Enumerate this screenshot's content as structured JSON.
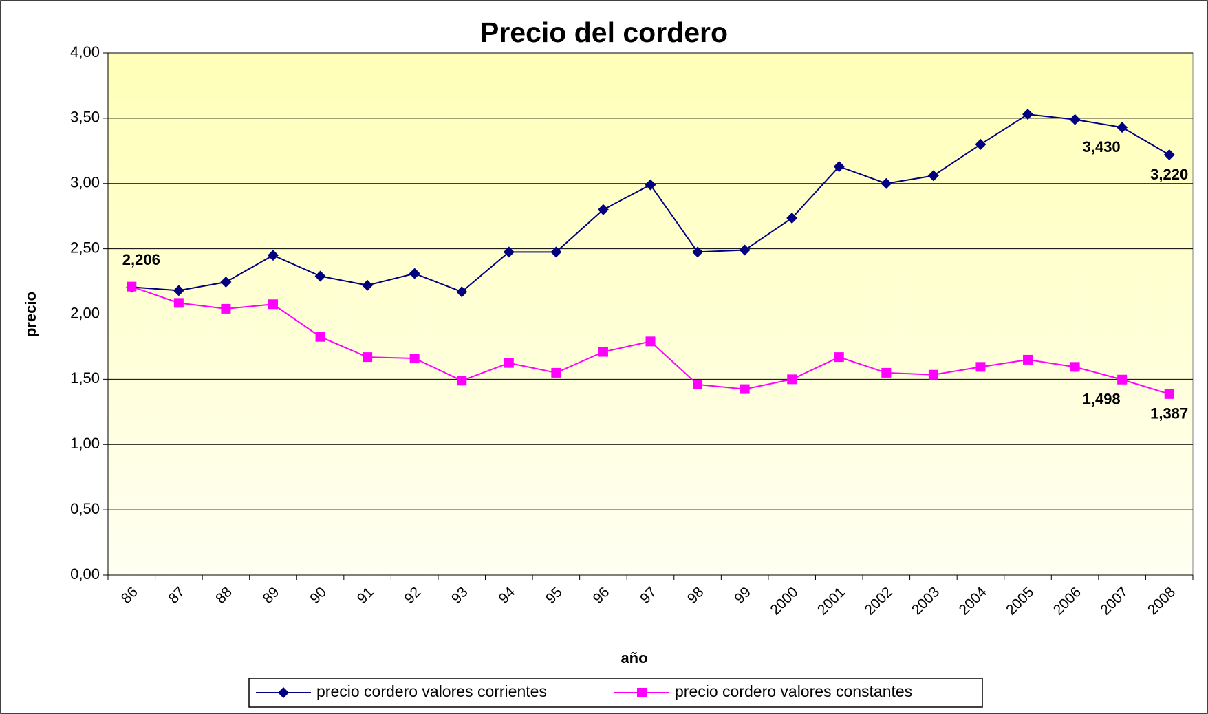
{
  "chart_data": {
    "type": "line",
    "title": "Precio del cordero",
    "x_label": "año",
    "y_label": "precio",
    "categories": [
      "86",
      "87",
      "88",
      "89",
      "90",
      "91",
      "92",
      "93",
      "94",
      "95",
      "96",
      "97",
      "98",
      "99",
      "2000",
      "2001",
      "2002",
      "2003",
      "2004",
      "2005",
      "2006",
      "2007",
      "2008"
    ],
    "series": [
      {
        "name": "precio cordero valores corrientes",
        "color": "#000080",
        "marker": "diamond",
        "values": [
          2.206,
          2.18,
          2.245,
          2.45,
          2.29,
          2.22,
          2.31,
          2.17,
          2.475,
          2.475,
          2.8,
          2.99,
          2.475,
          2.49,
          2.735,
          3.13,
          3.0,
          3.06,
          3.3,
          3.53,
          3.49,
          3.43,
          3.22
        ],
        "value_labels": [
          "2,206",
          null,
          null,
          null,
          null,
          null,
          null,
          null,
          null,
          null,
          null,
          null,
          null,
          null,
          null,
          null,
          null,
          null,
          null,
          null,
          null,
          "3,430",
          "3,220"
        ]
      },
      {
        "name": "precio cordero valores constantes",
        "color": "#ff00ff",
        "marker": "square",
        "values": [
          2.21,
          2.085,
          2.04,
          2.075,
          1.825,
          1.67,
          1.66,
          1.49,
          1.625,
          1.55,
          1.71,
          1.79,
          1.46,
          1.425,
          1.5,
          1.67,
          1.55,
          1.535,
          1.595,
          1.65,
          1.595,
          1.498,
          1.387
        ],
        "value_labels": [
          null,
          null,
          null,
          null,
          null,
          null,
          null,
          null,
          null,
          null,
          null,
          null,
          null,
          null,
          null,
          null,
          null,
          null,
          null,
          null,
          null,
          "1,498",
          "1,387"
        ]
      }
    ],
    "ylim": [
      0,
      4
    ],
    "yticks": [
      {
        "value": 0,
        "label": "0,00"
      },
      {
        "value": 0.5,
        "label": "0,50"
      },
      {
        "value": 1,
        "label": "1,00"
      },
      {
        "value": 1.5,
        "label": "1,50"
      },
      {
        "value": 2,
        "label": "2,00"
      },
      {
        "value": 2.5,
        "label": "2,50"
      },
      {
        "value": 3,
        "label": "3,00"
      },
      {
        "value": 3.5,
        "label": "3,50"
      },
      {
        "value": 4,
        "label": "4,00"
      }
    ],
    "grid": true,
    "legend": "bottom"
  }
}
